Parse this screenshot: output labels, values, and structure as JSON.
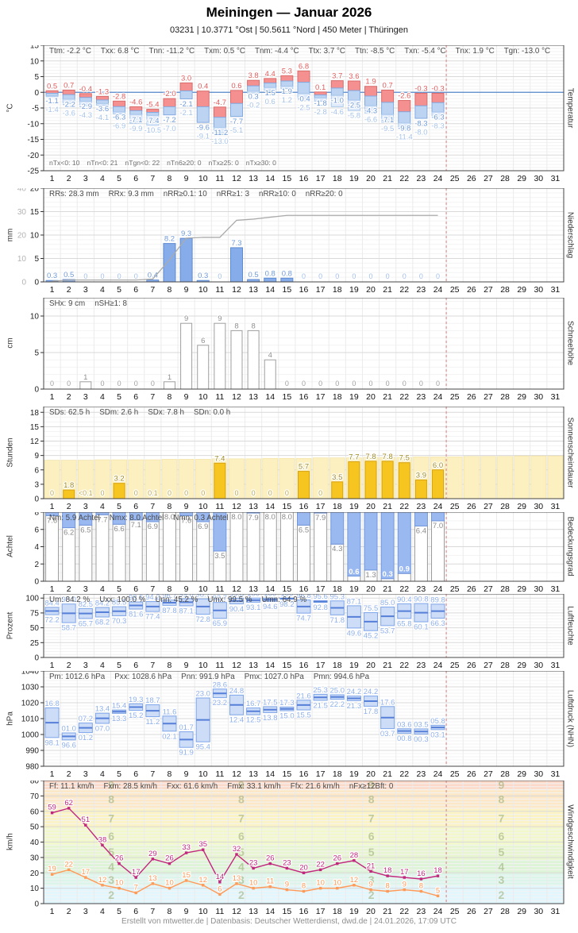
{
  "header": {
    "title": "Meiningen  —  Januar 2026",
    "subtitle": "03231  |  10.3771 °Ost  |  50.5611 °Nord  |  450 Meter  |  Thüringen"
  },
  "footer": "Erstellt von mtwetter.de | Datenbasis: Deutscher Wetterdienst, dwd.de | 24.01.2026, 17:09 UTC",
  "days": [
    1,
    2,
    3,
    4,
    5,
    6,
    7,
    8,
    9,
    10,
    11,
    12,
    13,
    14,
    15,
    16,
    17,
    18,
    19,
    20,
    21,
    22,
    23,
    24,
    25,
    26,
    27,
    28,
    29,
    30,
    31
  ],
  "marker_day": 24,
  "colors": {
    "temp_max_fill": "#f49090",
    "temp_max_edge": "#db6b6b",
    "temp_max_label": "#e05c5c",
    "temp_min_fill": "#bdd3f2",
    "temp_min_edge": "#83abe2",
    "temp_min_label": "#6f9ad8",
    "temp_ground_fill": "#dfeafa",
    "temp_ground_edge": "#aecbed",
    "temp_ground_label": "#a7c4e8",
    "zero_line": "#5588cc",
    "precip_fill": "#86ace9",
    "precip_edge": "#5e8bd1",
    "precip_label": "#6f9ad8",
    "cumulative_line": "#ababab",
    "snow_edge": "#9f9f9f",
    "snow_label": "#909090",
    "sun_fill": "#f6c51f",
    "sun_edge": "#d8a312",
    "sun_label": "#a08a28",
    "sun_possible_fill": "#fcf0c0",
    "sun_possible_edge": "#f3e3a4",
    "cloud_fill": "#9bb9f1",
    "cloud_edge": "#7097de",
    "cloud_label": "#8a8a8a",
    "box_fill": "#cddcf7",
    "box_edge": "#7ea6ea",
    "box_mean": "#567fd8",
    "box_label": "#8fb0ea",
    "wind_gust": "#c2267d",
    "wind_mean": "#ff9a57",
    "marker": "#e09090"
  },
  "chart_data": [
    {
      "id": "temperature",
      "type": "bar",
      "unit": "°C",
      "axis_label": "Temperatur",
      "ylim": [
        -25,
        15
      ],
      "yticks": [
        15,
        10,
        5,
        0,
        -5,
        -10,
        -15,
        -20,
        -25
      ],
      "minor_step": 1,
      "stats": [
        "Ttm: -2.2 °C",
        "Txx: 6.8 °C",
        "Tnn: -11.2 °C",
        "Txm: 0.5 °C",
        "Tnm: -4.4 °C",
        "Ttx: 3.7 °C",
        "Ttn: -8.5 °C",
        "Txn: -5.4 °C",
        "Tnx: 1.9 °C",
        "Tgn: -13.0 °C"
      ],
      "stats_bottom": [
        "nTx<0: 10",
        "nTn<0: 21",
        "nTgn<0: 22",
        "nTn6≥20: 0",
        "nTx≥25: 0",
        "nTx≥30: 0"
      ],
      "series": {
        "tmax": [
          0.5,
          0.7,
          -0.4,
          -1.3,
          -2.8,
          -4.6,
          -5.4,
          -2.0,
          3.0,
          0.4,
          -4.7,
          0.6,
          3.8,
          4.4,
          5.3,
          6.8,
          0.1,
          3.7,
          3.6,
          1.9,
          0.7,
          -2.6,
          -0.3,
          -0.3
        ],
        "tmin": [
          -1.1,
          -2.2,
          -2.9,
          -3.6,
          -6.3,
          -7.1,
          -7.4,
          -7.2,
          -2.1,
          -9.6,
          -11.2,
          -7.7,
          0.3,
          1.5,
          1.9,
          -0.4,
          -1.8,
          -1.0,
          -2.5,
          -4.3,
          -7.1,
          -9.8,
          -8.3,
          -6.3
        ],
        "tground": [
          -1.4,
          -3.6,
          -4.3,
          -4.1,
          -6.9,
          -9.9,
          -10.5,
          -7.0,
          -2.1,
          -9.1,
          -13.0,
          -5.1,
          -0.2,
          0.6,
          1.2,
          -2.5,
          -2.8,
          -4.6,
          -5.8,
          -6.6,
          -9.5,
          -11.4,
          -8.0,
          -8.3
        ]
      }
    },
    {
      "id": "precipitation",
      "type": "bar",
      "unit": "mm",
      "axis_label": "Niederschlag",
      "ylim": [
        0,
        20
      ],
      "yticks": [
        20,
        15,
        10,
        5,
        0
      ],
      "minor_step": 1,
      "y2lim": [
        0,
        40
      ],
      "y2ticks": [
        40,
        30,
        20,
        10,
        0
      ],
      "stats": [
        "RRs: 28.3 mm",
        "RRx: 9.3 mm",
        "nRR≥0.1: 10",
        "nRR≥1: 3",
        "nRR≥10: 0",
        "nRR≥20: 0"
      ],
      "values": [
        0.3,
        0.5,
        0,
        0,
        0,
        0,
        0.4,
        8.2,
        9.3,
        0.3,
        0,
        7.3,
        0.5,
        0.8,
        0.8,
        0,
        0,
        0,
        0,
        0,
        0,
        0,
        0,
        0
      ],
      "labels": [
        "0.3",
        "0.5",
        "0",
        "0",
        "0",
        "0",
        "0.4",
        "8.2",
        "9.3",
        "0.3",
        "0",
        "7.3",
        "0.5",
        "0.8",
        "0.8",
        "0",
        "0",
        "0",
        "0",
        "0",
        "0",
        "0",
        "0",
        "0"
      ]
    },
    {
      "id": "snow",
      "type": "bar",
      "unit": "cm",
      "axis_label": "Schneehöhe",
      "ylim": [
        0,
        12.5
      ],
      "yticks": [
        10,
        5,
        0
      ],
      "minor_step": 1,
      "stats": [
        "SHx: 9 cm",
        "nSH≥1: 8"
      ],
      "values": [
        0,
        0,
        1,
        0,
        0,
        0,
        0,
        1,
        9,
        6,
        9,
        8,
        8,
        4,
        0,
        0,
        0,
        0,
        0,
        0,
        0,
        0,
        0,
        0
      ],
      "labels": [
        "0",
        "0",
        "1",
        "0",
        "0",
        "0",
        "0",
        "1",
        "9",
        "6",
        "9",
        "8",
        "8",
        "4",
        "0",
        "0",
        "0",
        "0",
        "0",
        "0",
        "0",
        "0",
        "0",
        "0"
      ]
    },
    {
      "id": "sunshine",
      "type": "bar",
      "unit": "Stunden",
      "axis_label": "Sonnenscheindauer",
      "ylim": [
        0,
        19.2
      ],
      "yticks": [
        18,
        15,
        12,
        9,
        6,
        3,
        0
      ],
      "minor_step": 1,
      "stats": [
        "SDs: 62.5 h",
        "SDm: 2.6 h",
        "SDx: 7.8 h",
        "SDn: 0.0 h"
      ],
      "values": [
        0,
        1.8,
        0.05,
        0,
        3.2,
        0,
        0.1,
        0,
        0,
        0,
        7.4,
        0,
        0,
        0,
        0,
        5.7,
        0,
        3.5,
        7.7,
        7.8,
        7.8,
        7.5,
        3.9,
        6.0
      ],
      "labels": [
        "0",
        "1.8",
        "<0.1",
        "0",
        "3.2",
        "0",
        "0.1",
        "0",
        "0",
        "0",
        "7.4",
        "0",
        "0",
        "0",
        "0",
        "5.7",
        "0",
        "3.5",
        "7.7",
        "7.8",
        "7.8",
        "7.5",
        "3.9",
        "6.0"
      ],
      "possible": [
        8.0,
        8.0,
        8.0,
        8.1,
        8.1,
        8.1,
        8.1,
        8.2,
        8.2,
        8.2,
        8.3,
        8.3,
        8.3,
        8.4,
        8.4,
        8.4,
        8.5,
        8.5,
        8.5,
        8.6,
        8.6,
        8.6,
        8.7,
        8.7,
        8.7,
        8.8,
        8.8,
        8.8,
        8.9,
        8.9,
        8.9
      ]
    },
    {
      "id": "cloud",
      "type": "bar",
      "unit": "Achtel",
      "axis_label": "Bedeckungsgrad",
      "ylim": [
        0,
        8
      ],
      "yticks": [
        8,
        6,
        4,
        2,
        0
      ],
      "minor_step": 1,
      "stats": [
        "Nm: 5.9 Achtel",
        "Nmx: 8.0 Achtel",
        "Nmn: 0.3 Achtel"
      ],
      "values": [
        7.6,
        6.2,
        6.5,
        7.7,
        6.6,
        7.1,
        6.9,
        8.0,
        7.6,
        6.9,
        3.5,
        8.0,
        7.9,
        8.0,
        8.0,
        6.5,
        7.9,
        4.3,
        0.6,
        1.3,
        0.3,
        0.9,
        6.4,
        7.0
      ],
      "labels": [
        "7.6",
        "6.2",
        "6.5",
        "7.7",
        "6.6",
        "7.1",
        "6.9",
        "8.0",
        "7.6",
        "6.9",
        "3.5",
        "8.0",
        "7.9",
        "8.0",
        "8.0",
        "6.5",
        "7.9",
        "4.3",
        "0.6",
        "1.3",
        "0.3",
        "0.9",
        "6.4",
        "7.0"
      ]
    },
    {
      "id": "humidity",
      "type": "range-box",
      "unit": "Prozent",
      "axis_label": "Luftfeuchte",
      "ylim": [
        0,
        107
      ],
      "yticks": [
        100,
        75,
        50,
        25,
        0
      ],
      "minor_step": 5,
      "stats": [
        "Um: 84.2 %",
        "Uxx: 100.0 %",
        "Unn: 45.2 %",
        "Umx: 99.5 %",
        "Umn: 64.9 %"
      ],
      "max": [
        84.4,
        90.0,
        82.5,
        84.2,
        85.5,
        93.5,
        94.2,
        96.7,
        99.0,
        98.7,
        92.7,
        99.8,
        100,
        100,
        100,
        96.8,
        95.6,
        95.3,
        87.1,
        75.5,
        85.0,
        90.4,
        90.8,
        89.8
      ],
      "min": [
        72.2,
        58.7,
        65.7,
        68.2,
        70.3,
        81.6,
        77.4,
        87.8,
        87.1,
        72.8,
        65.9,
        90.4,
        93.1,
        94.6,
        98.2,
        74.7,
        92.8,
        71.8,
        49.6,
        45.2,
        53.7,
        65.8,
        60.1,
        66.3
      ]
    },
    {
      "id": "pressure",
      "type": "range-box",
      "unit": "hPa",
      "axis_label": "Luftdruck (NHN)",
      "ylim": [
        980,
        1040
      ],
      "yticks": [
        1040,
        1030,
        1020,
        1010,
        1000,
        990,
        980
      ],
      "minor_step": 2,
      "stats": [
        "Pm: 1012.6 hPa",
        "Pxx: 1028.6 hPa",
        "Pnn: 991.9 hPa",
        "Pmx: 1027.0 hPa",
        "Pmn: 994.6 hPa"
      ],
      "max": [
        1016.8,
        1001.0,
        1007.2,
        1013.4,
        1015.4,
        1019.3,
        1018.7,
        1011.6,
        1001.7,
        1023.0,
        1028.6,
        1024.8,
        1016.7,
        1017.5,
        1017.3,
        1021.6,
        1025.3,
        1025.0,
        1024.2,
        1024.2,
        1017.6,
        1003.6,
        1003.5,
        1005.8
      ],
      "min": [
        998.1,
        996.6,
        1001.2,
        1007.0,
        1013.3,
        1015.2,
        1011.2,
        1002.1,
        991.9,
        995.4,
        1023.2,
        1012.4,
        1012.5,
        1013.8,
        1015.0,
        1015.5,
        1021.5,
        1022.2,
        1021.3,
        1017.8,
        1003.7,
        1000.8,
        1000.3,
        1003.1
      ]
    },
    {
      "id": "wind",
      "type": "line",
      "unit": "km/h",
      "axis_label": "Windgeschwindigkeit",
      "ylim": [
        0,
        80
      ],
      "yticks": [
        80,
        70,
        60,
        50,
        40,
        30,
        20,
        10,
        0
      ],
      "minor_step": 2,
      "stats": [
        "Ff: 11.1 km/h",
        "Fxm: 28.5 km/h",
        "Fxx: 61.6 km/h",
        "Fmx: 33.1 km/h",
        "Ffx: 21.6 km/h",
        "nFx≥12Bft: 0"
      ],
      "series": [
        {
          "name": "gust",
          "values": [
            59,
            62,
            51,
            38,
            26,
            17,
            29,
            26,
            33,
            35,
            14,
            32,
            23,
            26,
            23,
            20,
            22,
            26,
            28,
            21,
            18,
            17,
            16,
            18
          ]
        },
        {
          "name": "mean",
          "values": [
            19,
            22,
            17,
            12,
            10,
            7,
            13,
            10,
            15,
            12,
            6,
            13,
            10,
            11,
            9,
            8,
            10,
            10,
            12,
            9,
            8,
            9,
            8,
            5
          ]
        }
      ],
      "bft_bands": [
        [
          0,
          11.5
        ],
        [
          11.5,
          19.5
        ],
        [
          19.5,
          28.5
        ],
        [
          28.5,
          38.5
        ],
        [
          38.5,
          49.5
        ],
        [
          49.5,
          61.5
        ],
        [
          61.5,
          74.5
        ],
        [
          74.5,
          80
        ]
      ],
      "bft_band_colors": [
        "#e2f6fd",
        "#dcf5eb",
        "#ddf4d7",
        "#e8f6cf",
        "#f3f8cb",
        "#fbf3c3",
        "#fce8c7",
        "#fcd9c8"
      ],
      "bft_numbers": [
        2,
        3,
        4,
        5,
        6,
        7,
        8,
        9
      ]
    }
  ]
}
